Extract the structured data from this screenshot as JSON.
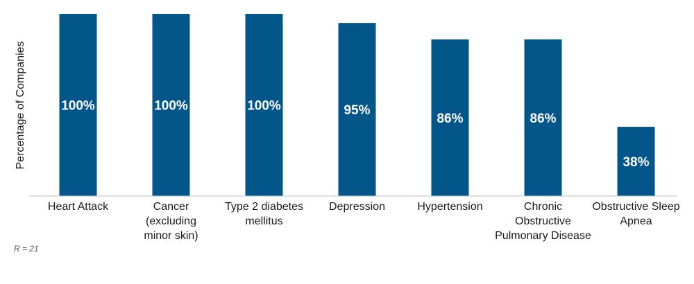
{
  "chart_data": {
    "type": "bar",
    "categories": [
      [
        "Heart Attack"
      ],
      [
        "Cancer",
        "(excluding",
        "minor skin)"
      ],
      [
        "Type 2 diabetes",
        "mellitus"
      ],
      [
        "Depression"
      ],
      [
        "Hypertension"
      ],
      [
        "Chronic",
        "Obstructive",
        "Pulmonary Disease"
      ],
      [
        "Obstructive Sleep",
        "Apnea"
      ]
    ],
    "values": [
      100,
      100,
      100,
      95,
      86,
      86,
      38
    ],
    "data_labels": [
      "100%",
      "100%",
      "100%",
      "95%",
      "86%",
      "86%",
      "38%"
    ],
    "ylabel": "Percentage of Companies",
    "xlabel": "",
    "ylim": [
      0,
      100
    ],
    "grid": false,
    "bar_color": "#03568a"
  },
  "note": "R = 21"
}
